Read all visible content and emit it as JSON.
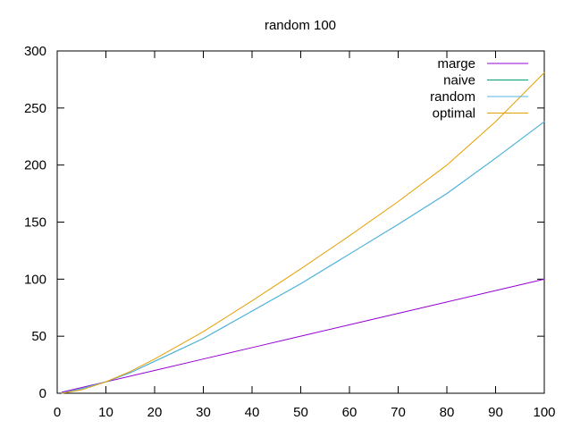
{
  "chart_data": {
    "type": "line",
    "title": "random 100",
    "xlabel": "",
    "ylabel": "",
    "xlim": [
      0,
      100
    ],
    "ylim": [
      0,
      300
    ],
    "xticks": [
      0,
      10,
      20,
      30,
      40,
      50,
      60,
      70,
      80,
      90,
      100
    ],
    "yticks": [
      0,
      50,
      100,
      150,
      200,
      250,
      300
    ],
    "grid": false,
    "legend": "top-right",
    "series": [
      {
        "name": "marge",
        "color": "#9400d3",
        "x": [
          1,
          5,
          10,
          20,
          30,
          40,
          50,
          60,
          70,
          80,
          90,
          100
        ],
        "y": [
          1,
          5,
          10,
          20,
          30,
          40,
          50,
          60,
          70,
          80,
          90,
          100
        ]
      },
      {
        "name": "naive",
        "color": "#009e73",
        "x": [
          1,
          5,
          10,
          15,
          20,
          25,
          30,
          40,
          50,
          60,
          70,
          80,
          90,
          100
        ],
        "y": [
          0,
          4,
          10,
          18,
          28,
          38,
          48,
          72,
          96,
          122,
          148,
          175,
          206,
          238
        ]
      },
      {
        "name": "random",
        "color": "#56b4e9",
        "x": [
          1,
          5,
          10,
          15,
          20,
          25,
          30,
          40,
          50,
          60,
          70,
          80,
          90,
          100
        ],
        "y": [
          0,
          4,
          10,
          18,
          28,
          38,
          48,
          72,
          96,
          122,
          148,
          175,
          206,
          238
        ]
      },
      {
        "name": "optimal",
        "color": "#e69f00",
        "x": [
          1,
          5,
          10,
          15,
          20,
          25,
          30,
          40,
          50,
          60,
          70,
          80,
          90,
          100
        ],
        "y": [
          0,
          3,
          10,
          19,
          30,
          42,
          54,
          81,
          109,
          138,
          168,
          200,
          238,
          281
        ]
      }
    ]
  }
}
